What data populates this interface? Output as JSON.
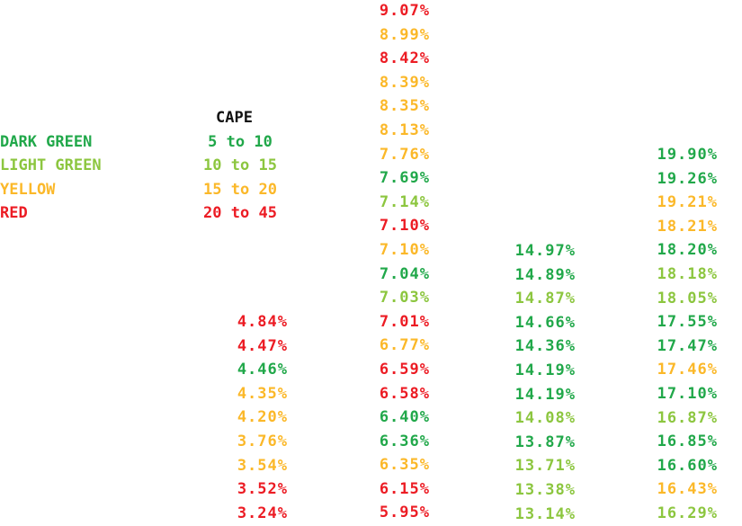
{
  "legend": {
    "title": "CAPE",
    "rows": [
      {
        "name": "DARK GREEN",
        "range": "5 to 10",
        "color": "#21a84a"
      },
      {
        "name": "LIGHT GREEN",
        "range": "10 to 15",
        "color": "#8cc63f"
      },
      {
        "name": "YELLOW",
        "range": "15 to 20",
        "color": "#fbb829"
      },
      {
        "name": "RED",
        "range": "20 to 45",
        "color": "#ec1c24"
      }
    ]
  },
  "colors": {
    "dark_green": "#21a84a",
    "light_green": "#8cc63f",
    "yellow": "#fbb829",
    "red": "#ec1c24"
  },
  "columns": [
    {
      "cells": [
        {
          "value": "4.84%",
          "color": "red"
        },
        {
          "value": "4.47%",
          "color": "red"
        },
        {
          "value": "4.46%",
          "color": "dark_green"
        },
        {
          "value": "4.35%",
          "color": "yellow"
        },
        {
          "value": "4.20%",
          "color": "yellow"
        },
        {
          "value": "3.76%",
          "color": "yellow"
        },
        {
          "value": "3.54%",
          "color": "yellow"
        },
        {
          "value": "3.52%",
          "color": "red"
        },
        {
          "value": "3.24%",
          "color": "red"
        }
      ]
    },
    {
      "cells": [
        {
          "value": "9.07%",
          "color": "red"
        },
        {
          "value": "8.99%",
          "color": "yellow"
        },
        {
          "value": "8.42%",
          "color": "red"
        },
        {
          "value": "8.39%",
          "color": "yellow"
        },
        {
          "value": "8.35%",
          "color": "yellow"
        },
        {
          "value": "8.13%",
          "color": "yellow"
        },
        {
          "value": "7.76%",
          "color": "yellow"
        },
        {
          "value": "7.69%",
          "color": "dark_green"
        },
        {
          "value": "7.14%",
          "color": "light_green"
        },
        {
          "value": "7.10%",
          "color": "red"
        },
        {
          "value": "7.10%",
          "color": "yellow"
        },
        {
          "value": "7.04%",
          "color": "dark_green"
        },
        {
          "value": "7.03%",
          "color": "light_green"
        },
        {
          "value": "7.01%",
          "color": "red"
        },
        {
          "value": "6.77%",
          "color": "yellow"
        },
        {
          "value": "6.59%",
          "color": "red"
        },
        {
          "value": "6.58%",
          "color": "red"
        },
        {
          "value": "6.40%",
          "color": "dark_green"
        },
        {
          "value": "6.36%",
          "color": "dark_green"
        },
        {
          "value": "6.35%",
          "color": "yellow"
        },
        {
          "value": "6.15%",
          "color": "red"
        },
        {
          "value": "5.95%",
          "color": "red"
        }
      ]
    },
    {
      "cells": [
        {
          "value": "14.97%",
          "color": "dark_green"
        },
        {
          "value": "14.89%",
          "color": "dark_green"
        },
        {
          "value": "14.87%",
          "color": "light_green"
        },
        {
          "value": "14.66%",
          "color": "dark_green"
        },
        {
          "value": "14.36%",
          "color": "dark_green"
        },
        {
          "value": "14.19%",
          "color": "dark_green"
        },
        {
          "value": "14.19%",
          "color": "dark_green"
        },
        {
          "value": "14.08%",
          "color": "light_green"
        },
        {
          "value": "13.87%",
          "color": "dark_green"
        },
        {
          "value": "13.71%",
          "color": "light_green"
        },
        {
          "value": "13.38%",
          "color": "light_green"
        },
        {
          "value": "13.14%",
          "color": "light_green"
        }
      ]
    },
    {
      "cells": [
        {
          "value": "19.90%",
          "color": "dark_green"
        },
        {
          "value": "19.26%",
          "color": "dark_green"
        },
        {
          "value": "19.21%",
          "color": "yellow"
        },
        {
          "value": "18.21%",
          "color": "yellow"
        },
        {
          "value": "18.20%",
          "color": "dark_green"
        },
        {
          "value": "18.18%",
          "color": "light_green"
        },
        {
          "value": "18.05%",
          "color": "light_green"
        },
        {
          "value": "17.55%",
          "color": "dark_green"
        },
        {
          "value": "17.47%",
          "color": "dark_green"
        },
        {
          "value": "17.46%",
          "color": "yellow"
        },
        {
          "value": "17.10%",
          "color": "dark_green"
        },
        {
          "value": "16.87%",
          "color": "light_green"
        },
        {
          "value": "16.85%",
          "color": "dark_green"
        },
        {
          "value": "16.60%",
          "color": "dark_green"
        },
        {
          "value": "16.43%",
          "color": "yellow"
        },
        {
          "value": "16.29%",
          "color": "light_green"
        }
      ]
    }
  ]
}
